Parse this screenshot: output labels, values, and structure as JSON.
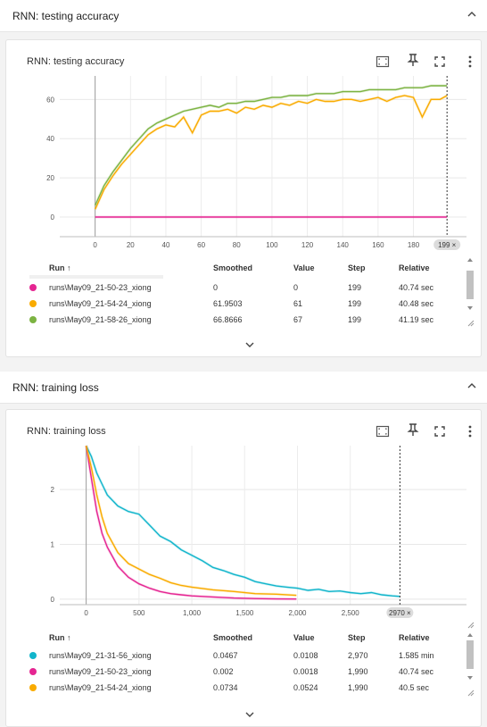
{
  "colors": {
    "run_cyan": "#12b5cb",
    "run_magenta": "#e52592",
    "run_orange": "#f9ab00",
    "run_green": "#7cb342"
  },
  "icons": [
    "chevron-up-icon",
    "fit-domain-icon",
    "pin-icon",
    "fullscreen-icon",
    "more-vert-icon",
    "chevron-down-icon",
    "sort-up-icon",
    "resize-icon"
  ],
  "sections": [
    {
      "header_title": "RNN: testing accuracy",
      "card_title": "RNN: testing accuracy",
      "step_badge": "199 ×",
      "columns": {
        "run": "Run ↑",
        "smoothed": "Smoothed",
        "value": "Value",
        "step": "Step",
        "relative": "Relative"
      },
      "rows": [
        {
          "run": "runs\\May09_21-50-23_xiong",
          "smoothed": "0",
          "value": "0",
          "step": "199",
          "relative": "40.74 sec",
          "color": "#e52592"
        },
        {
          "run": "runs\\May09_21-54-24_xiong",
          "smoothed": "61.9503",
          "value": "61",
          "step": "199",
          "relative": "40.48 sec",
          "color": "#f9ab00"
        },
        {
          "run": "runs\\May09_21-58-26_xiong",
          "smoothed": "66.8666",
          "value": "67",
          "step": "199",
          "relative": "41.19 sec",
          "color": "#7cb342"
        }
      ],
      "chart_data": {
        "type": "line",
        "title": "RNN: testing accuracy",
        "xlim": [
          -20,
          210
        ],
        "ylim": [
          -10,
          72
        ],
        "x_ticks": [
          0,
          20,
          40,
          60,
          80,
          100,
          120,
          140,
          160,
          180
        ],
        "y_ticks": [
          0,
          20,
          40,
          60
        ],
        "cursor_step": 199,
        "series": [
          {
            "name": "runs\\May09_21-50-23_xiong",
            "color": "#e52592",
            "x": [
              0,
              50,
              100,
              150,
              199
            ],
            "y": [
              0,
              0,
              0,
              0,
              0
            ]
          },
          {
            "name": "runs\\May09_21-54-24_xiong",
            "color": "#f9ab00",
            "x": [
              0,
              5,
              10,
              15,
              20,
              25,
              30,
              35,
              40,
              45,
              50,
              55,
              60,
              65,
              70,
              75,
              80,
              85,
              90,
              95,
              100,
              105,
              110,
              115,
              120,
              125,
              130,
              135,
              140,
              145,
              150,
              155,
              160,
              165,
              170,
              175,
              180,
              185,
              190,
              195,
              199
            ],
            "y": [
              4,
              14,
              21,
              27,
              32,
              37,
              42,
              45,
              47,
              46,
              51,
              43,
              52,
              54,
              54,
              55,
              53,
              56,
              55,
              57,
              56,
              58,
              57,
              59,
              58,
              60,
              59,
              59,
              60,
              60,
              59,
              60,
              61,
              59,
              61,
              62,
              61,
              51,
              60,
              60,
              62
            ]
          },
          {
            "name": "runs\\May09_21-58-26_xiong",
            "color": "#7cb342",
            "x": [
              0,
              5,
              10,
              15,
              20,
              25,
              30,
              35,
              40,
              45,
              50,
              55,
              60,
              65,
              70,
              75,
              80,
              85,
              90,
              95,
              100,
              105,
              110,
              115,
              120,
              125,
              130,
              135,
              140,
              145,
              150,
              155,
              160,
              165,
              170,
              175,
              180,
              185,
              190,
              195,
              199
            ],
            "y": [
              6,
              16,
              23,
              29,
              35,
              40,
              45,
              48,
              50,
              52,
              54,
              55,
              56,
              57,
              56,
              58,
              58,
              59,
              59,
              60,
              61,
              61,
              62,
              62,
              62,
              63,
              63,
              63,
              64,
              64,
              64,
              65,
              65,
              65,
              65,
              66,
              66,
              66,
              67,
              67,
              67
            ]
          }
        ]
      }
    },
    {
      "header_title": "RNN: training loss",
      "card_title": "RNN: training loss",
      "step_badge": "2970 ×",
      "columns": {
        "run": "Run ↑",
        "smoothed": "Smoothed",
        "value": "Value",
        "step": "Step",
        "relative": "Relative"
      },
      "rows": [
        {
          "run": "runs\\May09_21-31-56_xiong",
          "smoothed": "0.0467",
          "value": "0.0108",
          "step": "2,970",
          "relative": "1.585 min",
          "color": "#12b5cb"
        },
        {
          "run": "runs\\May09_21-50-23_xiong",
          "smoothed": "0.002",
          "value": "0.0018",
          "step": "1,990",
          "relative": "40.74 sec",
          "color": "#e52592"
        },
        {
          "run": "runs\\May09_21-54-24_xiong",
          "smoothed": "0.0734",
          "value": "0.0524",
          "step": "1,990",
          "relative": "40.5 sec",
          "color": "#f9ab00"
        }
      ],
      "chart_data": {
        "type": "line",
        "title": "RNN: training loss",
        "xlim": [
          -250,
          3600
        ],
        "ylim": [
          -0.1,
          2.8
        ],
        "x_ticks": [
          0,
          500,
          1000,
          1500,
          2000,
          2500
        ],
        "x_tick_labels": [
          "0",
          "500",
          "1,000",
          "1,500",
          "2,000",
          "2,500"
        ],
        "y_ticks": [
          0,
          1,
          2
        ],
        "cursor_step": 2970,
        "series": [
          {
            "name": "runs\\May09_21-31-56_xiong",
            "color": "#12b5cb",
            "x": [
              0,
              50,
              100,
              150,
              200,
              300,
              400,
              500,
              600,
              700,
              800,
              900,
              1000,
              1100,
              1200,
              1300,
              1400,
              1500,
              1600,
              1700,
              1800,
              1900,
              2000,
              2100,
              2200,
              2300,
              2400,
              2500,
              2600,
              2700,
              2800,
              2900,
              2970
            ],
            "y": [
              2.8,
              2.6,
              2.3,
              2.1,
              1.9,
              1.7,
              1.6,
              1.55,
              1.35,
              1.15,
              1.05,
              0.9,
              0.8,
              0.7,
              0.58,
              0.52,
              0.45,
              0.4,
              0.32,
              0.28,
              0.24,
              0.22,
              0.2,
              0.16,
              0.18,
              0.14,
              0.15,
              0.12,
              0.1,
              0.12,
              0.08,
              0.06,
              0.05
            ]
          },
          {
            "name": "runs\\May09_21-50-23_xiong",
            "color": "#e52592",
            "x": [
              0,
              50,
              100,
              150,
              200,
              300,
              400,
              500,
              600,
              700,
              800,
              900,
              1000,
              1200,
              1400,
              1600,
              1800,
              1990
            ],
            "y": [
              2.8,
              2.2,
              1.6,
              1.2,
              0.95,
              0.6,
              0.4,
              0.28,
              0.2,
              0.14,
              0.1,
              0.08,
              0.06,
              0.04,
              0.02,
              0.01,
              0.005,
              0.002
            ]
          },
          {
            "name": "runs\\May09_21-54-24_xiong",
            "color": "#f9ab00",
            "x": [
              0,
              50,
              100,
              150,
              200,
              300,
              400,
              500,
              600,
              700,
              800,
              900,
              1000,
              1200,
              1400,
              1600,
              1800,
              1990
            ],
            "y": [
              2.8,
              2.4,
              1.9,
              1.5,
              1.2,
              0.85,
              0.65,
              0.55,
              0.45,
              0.38,
              0.3,
              0.25,
              0.22,
              0.17,
              0.14,
              0.1,
              0.09,
              0.07
            ]
          }
        ]
      }
    }
  ]
}
